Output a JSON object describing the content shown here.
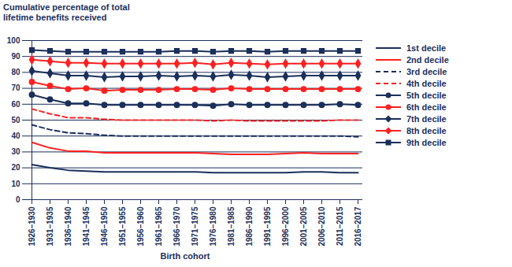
{
  "chart_data": {
    "type": "line",
    "y_label": "Cumulative percentage of total lifetime benefits received",
    "x_label": "Birth cohort",
    "categories": [
      "1926–1930",
      "1931–1935",
      "1936–1940",
      "1941–1945",
      "1946–1950",
      "1951–1955",
      "1956–1960",
      "1961–1965",
      "1966–1970",
      "1971–1975",
      "1976–1980",
      "1981–1985",
      "1986–1990",
      "1991–1995",
      "1996–2000",
      "2001–2005",
      "2006–2010",
      "2011–2015",
      "2016–2017"
    ],
    "ylim": [
      0,
      100
    ],
    "yticks": [
      0,
      10,
      20,
      30,
      40,
      50,
      60,
      70,
      80,
      90,
      100
    ],
    "grid": true,
    "legend": "right",
    "series": [
      {
        "name": "1st decile",
        "color": "#1b2f5b",
        "line_style": "solid",
        "marker": "none",
        "values": [
          22,
          20,
          18.5,
          18,
          17.5,
          17.5,
          17.5,
          17.5,
          17.5,
          17.5,
          17,
          17,
          17,
          17,
          17,
          17.5,
          17.5,
          17,
          17
        ]
      },
      {
        "name": "2nd decile",
        "color": "#ff2020",
        "line_style": "solid",
        "marker": "none",
        "values": [
          36,
          32.5,
          30.5,
          30.5,
          29.5,
          29.5,
          29.5,
          29.5,
          29.5,
          29.5,
          29,
          28.5,
          28.5,
          28.5,
          29,
          29.5,
          29,
          29,
          29
        ]
      },
      {
        "name": "3rd decile",
        "color": "#1b2f5b",
        "line_style": "dashed",
        "marker": "none",
        "values": [
          47,
          44,
          42,
          41.5,
          40.5,
          40,
          40,
          40,
          40,
          40,
          40,
          40,
          40,
          40,
          40,
          40,
          40,
          40,
          39.5
        ]
      },
      {
        "name": "4th decile",
        "color": "#ff2020",
        "line_style": "dashed",
        "marker": "none",
        "values": [
          57,
          54,
          51.5,
          51.5,
          50.5,
          50,
          50,
          50,
          50,
          50,
          49.5,
          50,
          49.5,
          49.5,
          49.5,
          49.5,
          49.5,
          50,
          50
        ]
      },
      {
        "name": "5th decile",
        "color": "#1b2f5b",
        "line_style": "solid",
        "marker": "circle",
        "values": [
          66,
          63,
          60.5,
          60.5,
          59.5,
          59.5,
          59.5,
          59.5,
          59.5,
          59.5,
          59,
          60,
          59.5,
          59.5,
          59.5,
          59.5,
          59.5,
          60,
          59.5
        ]
      },
      {
        "name": "6th decile",
        "color": "#ff2020",
        "line_style": "solid",
        "marker": "circle",
        "values": [
          74,
          71.5,
          69.5,
          70,
          68.5,
          69,
          69,
          69,
          69.5,
          69.5,
          69,
          70,
          69.5,
          69.5,
          69.5,
          69.5,
          69.5,
          69.5,
          69.5
        ]
      },
      {
        "name": "7th decile",
        "color": "#1b2f5b",
        "line_style": "solid",
        "marker": "diamond",
        "values": [
          81,
          79.5,
          78,
          78,
          77,
          77.5,
          77.5,
          78,
          77.5,
          78,
          77.5,
          78.5,
          78,
          77,
          77.5,
          78,
          78,
          78,
          78
        ]
      },
      {
        "name": "8th decile",
        "color": "#ff2020",
        "line_style": "solid",
        "marker": "diamond",
        "values": [
          88,
          87,
          86,
          86,
          85.5,
          85.5,
          85.5,
          85.5,
          85.5,
          86,
          85,
          86,
          85.5,
          85,
          85.5,
          85.5,
          85.5,
          85.5,
          85.5
        ]
      },
      {
        "name": "9th decile",
        "color": "#1b2f5b",
        "line_style": "solid",
        "marker": "square",
        "values": [
          94,
          93.5,
          93,
          93,
          93,
          93,
          93,
          93,
          93.5,
          93.5,
          93,
          93.5,
          93.5,
          93,
          93.5,
          93.5,
          93.5,
          93.5,
          93.5
        ]
      }
    ]
  }
}
